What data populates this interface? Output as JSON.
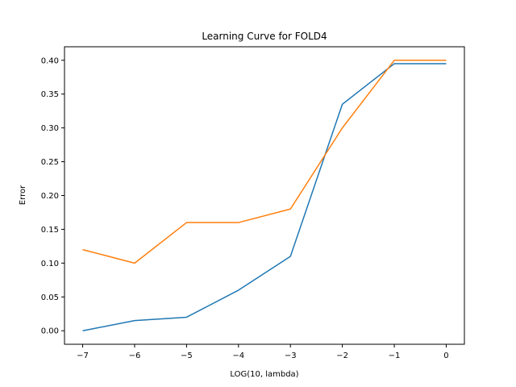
{
  "chart_data": {
    "type": "line",
    "title": "Learning Curve for FOLD4",
    "xlabel": "LOG(10, lambda)",
    "ylabel": "Error",
    "x": [
      -7,
      -6,
      -5,
      -4,
      -3,
      -2,
      -1,
      0
    ],
    "xlim": [
      -7.35,
      0.35
    ],
    "ylim": [
      -0.02,
      0.42
    ],
    "xticks": [
      -7,
      -6,
      -5,
      -4,
      -3,
      -2,
      -1,
      0
    ],
    "xtick_labels": [
      "−7",
      "−6",
      "−5",
      "−4",
      "−3",
      "−2",
      "−1",
      "0"
    ],
    "yticks": [
      0.0,
      0.05,
      0.1,
      0.15,
      0.2,
      0.25,
      0.3,
      0.35,
      0.4
    ],
    "ytick_labels": [
      "0.00",
      "0.05",
      "0.10",
      "0.15",
      "0.20",
      "0.25",
      "0.30",
      "0.35",
      "0.40"
    ],
    "grid": false,
    "series": [
      {
        "color": "#1f77b4",
        "values": [
          0.0,
          0.015,
          0.02,
          0.06,
          0.11,
          0.335,
          0.395,
          0.395
        ]
      },
      {
        "color": "#ff7f0e",
        "values": [
          0.12,
          0.1,
          0.16,
          0.16,
          0.18,
          0.3,
          0.4,
          0.4
        ]
      }
    ]
  }
}
